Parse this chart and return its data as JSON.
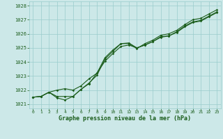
{
  "title": "Graphe pression niveau de la mer (hPa)",
  "background_color": "#cce8e8",
  "grid_color": "#99cccc",
  "line_color": "#1a5c1a",
  "x_ticks": [
    0,
    1,
    2,
    3,
    4,
    5,
    6,
    7,
    8,
    9,
    10,
    11,
    12,
    13,
    14,
    15,
    16,
    17,
    18,
    19,
    20,
    21,
    22,
    23
  ],
  "ylim": [
    1020.7,
    1028.3
  ],
  "yticks": [
    1021,
    1022,
    1023,
    1024,
    1025,
    1026,
    1027,
    1028
  ],
  "line1_x": [
    0,
    1,
    2,
    3,
    4,
    5,
    6,
    7,
    8,
    9,
    10,
    11,
    12,
    13,
    14,
    15,
    16,
    17,
    18,
    19,
    20,
    21,
    22,
    23
  ],
  "line1_y": [
    1021.5,
    1021.55,
    1021.85,
    1021.55,
    1021.55,
    1021.55,
    1022.05,
    1022.5,
    1023.05,
    1024.2,
    1024.75,
    1025.3,
    1025.35,
    1025.0,
    1025.2,
    1025.45,
    1025.8,
    1025.85,
    1026.15,
    1026.55,
    1026.85,
    1026.95,
    1027.25,
    1027.55
  ],
  "line2_x": [
    0,
    1,
    2,
    3,
    4,
    5,
    6,
    7,
    8,
    9,
    10,
    11,
    12,
    13,
    14,
    15,
    16,
    17,
    18,
    19,
    20,
    21,
    22,
    23
  ],
  "line2_y": [
    1021.5,
    1021.55,
    1021.85,
    1021.45,
    1021.3,
    1021.55,
    1022.05,
    1022.45,
    1023.2,
    1024.05,
    1024.6,
    1025.1,
    1025.2,
    1025.0,
    1025.2,
    1025.45,
    1025.75,
    1025.85,
    1026.1,
    1026.5,
    1026.8,
    1026.9,
    1027.2,
    1027.5
  ],
  "line3_x": [
    0,
    1,
    2,
    3,
    4,
    5,
    6,
    7,
    8,
    9,
    10,
    11,
    12,
    13,
    14,
    15,
    16,
    17,
    18,
    19,
    20,
    21,
    22,
    23
  ],
  "line3_y": [
    1021.5,
    1021.55,
    1021.85,
    1022.0,
    1022.1,
    1022.0,
    1022.3,
    1022.8,
    1023.2,
    1024.3,
    1024.85,
    1025.3,
    1025.3,
    1024.95,
    1025.3,
    1025.55,
    1025.9,
    1026.0,
    1026.25,
    1026.65,
    1027.0,
    1027.1,
    1027.4,
    1027.7
  ]
}
